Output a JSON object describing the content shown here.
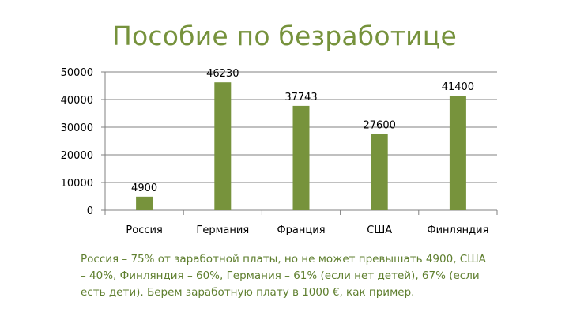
{
  "slide": {
    "title": "Пособие по безработице",
    "note": "Россия – 75% от заработной платы,  но не может превышать 4900, США – 40%, Финляндия – 60%, Германия – 61% (если нет детей), 67% (если есть дети). Берем заработную плату в 1000 €, как пример."
  },
  "colors": {
    "bar": "#77933c",
    "title": "#76923c",
    "note": "#5f7f2f",
    "grid": "#808080",
    "text": "#000000"
  },
  "chart_data": {
    "type": "bar",
    "title": "",
    "xlabel": "",
    "ylabel": "",
    "categories": [
      "Россия",
      "Германия",
      "Франция",
      "США",
      "Финляндия"
    ],
    "values": [
      4900,
      46230,
      37743,
      27600,
      41400
    ],
    "data_labels": [
      "4900",
      "46230",
      "37743",
      "27600",
      "41400"
    ],
    "yticks": [
      0,
      10000,
      20000,
      30000,
      40000,
      50000
    ],
    "ytick_labels": [
      "0",
      "10000",
      "20000",
      "30000",
      "40000",
      "50000"
    ],
    "ylim": [
      0,
      50000
    ],
    "grid": true,
    "legend": "none"
  }
}
